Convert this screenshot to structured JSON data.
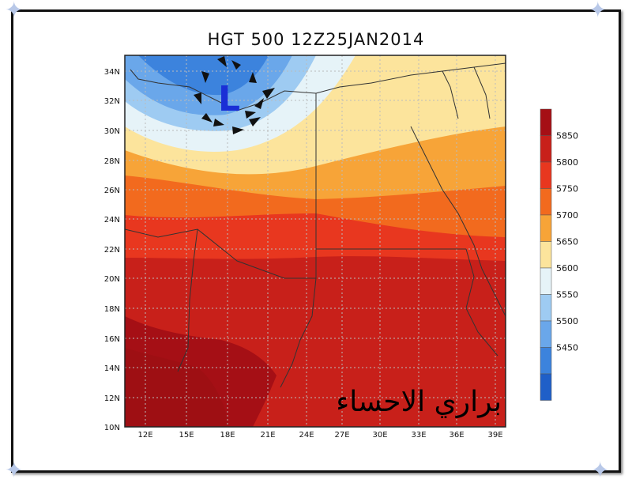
{
  "title": "HGT 500 12Z25JAN2014",
  "low_marker": "L",
  "watermark": "براري الاحساء",
  "lat_labels": [
    "34N",
    "32N",
    "30N",
    "28N",
    "26N",
    "24N",
    "22N",
    "20N",
    "18N",
    "16N",
    "14N",
    "12N",
    "10N"
  ],
  "lon_labels": [
    "12E",
    "15E",
    "18E",
    "21E",
    "24E",
    "27E",
    "30E",
    "33E",
    "36E",
    "39E"
  ],
  "legend": {
    "levels": [
      "5850",
      "5800",
      "5750",
      "5700",
      "5650",
      "5600",
      "5550",
      "5500",
      "5450"
    ],
    "colors": [
      "#a50f15",
      "#c8201a",
      "#e8371f",
      "#f26a1e",
      "#f7a438",
      "#fce49c",
      "#e6f3f8",
      "#9ecbf2",
      "#6aa7ea",
      "#3c83dd",
      "#1f5fc8"
    ]
  },
  "colors": {
    "low_marker": "#1a2fd6",
    "land_border": "#333333"
  }
}
